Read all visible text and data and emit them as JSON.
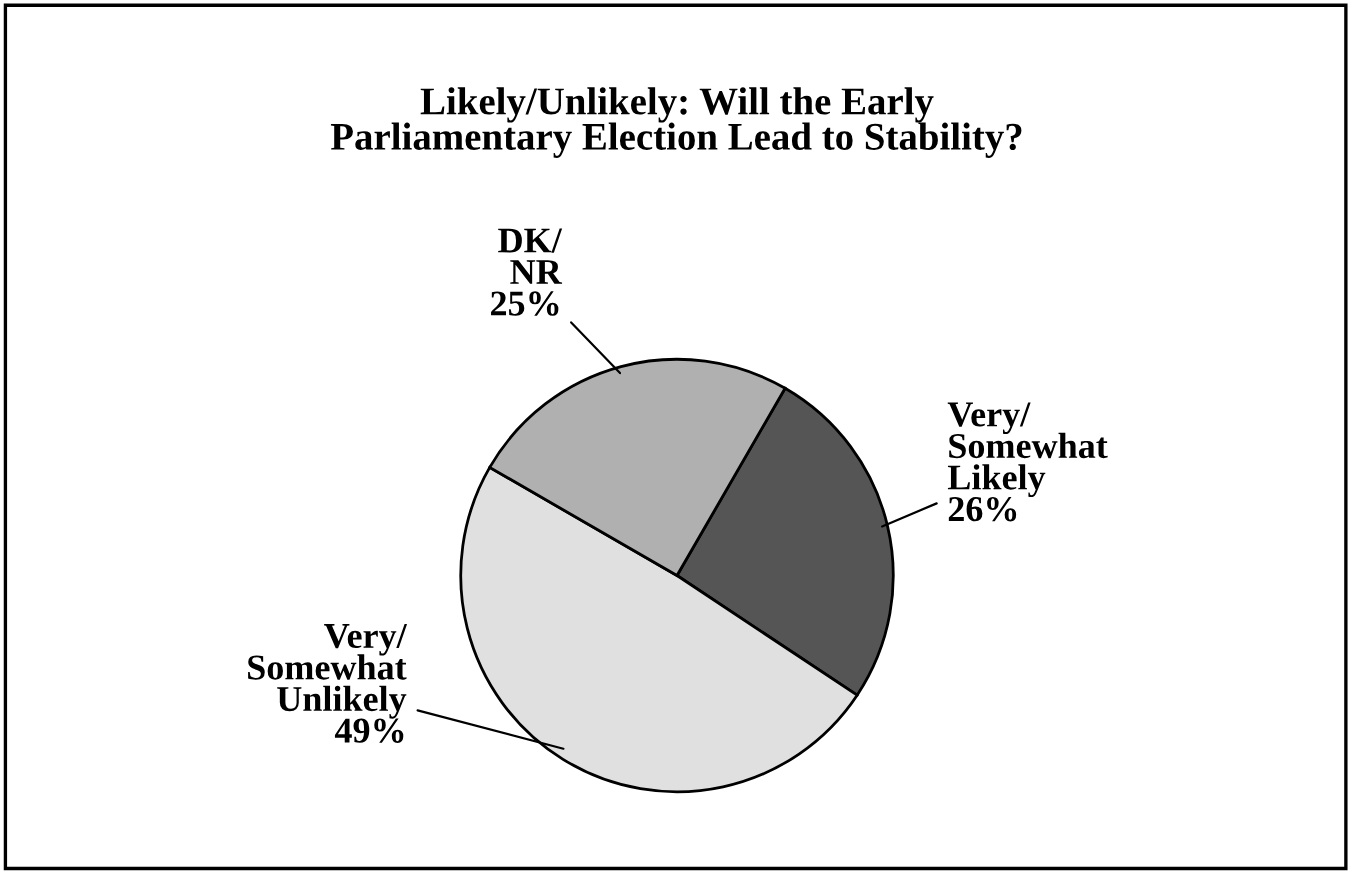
{
  "chart_data": {
    "type": "pie",
    "title": "Likely/Unlikely: Will the Early\nParliamentary Election Lead to Stability?",
    "categories": [
      "Very/Somewhat Likely",
      "Very/Somewhat Unlikely",
      "DK/NR"
    ],
    "values": [
      26,
      49,
      25
    ],
    "value_labels": [
      "26%",
      "49%",
      "25%"
    ],
    "colors": [
      "#555555",
      "#e0e0e0",
      "#b0b0b0"
    ]
  }
}
